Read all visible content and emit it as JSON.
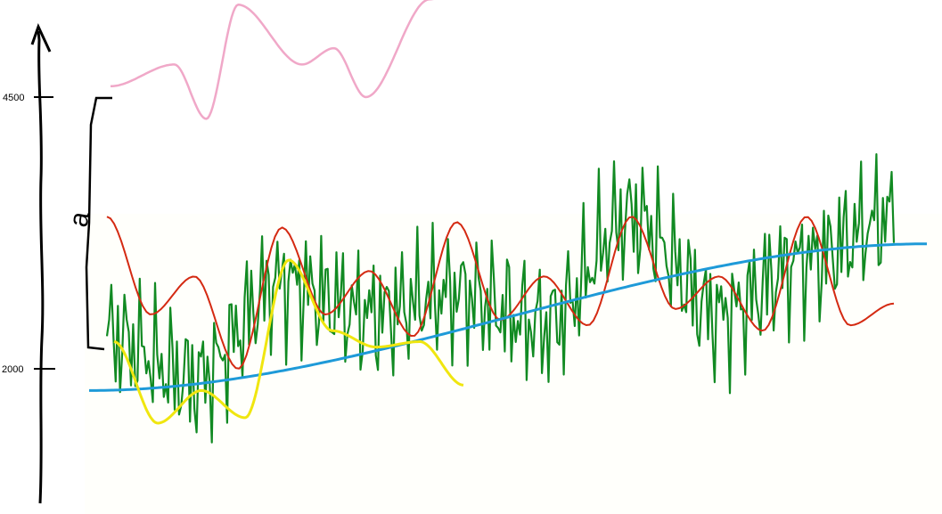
{
  "chart_data": {
    "type": "line",
    "title": "",
    "xlabel": "",
    "ylabel": "",
    "ylim": [
      800,
      5300
    ],
    "y_ticks": [
      {
        "value": 4500,
        "label": "4500"
      },
      {
        "value": 2000,
        "label": "2000"
      }
    ],
    "annotations": [
      {
        "text": "a",
        "from": 2000,
        "to": 4500
      }
    ],
    "grid": false,
    "legend": "none",
    "series": [
      {
        "key": "green",
        "color": "#118a22",
        "x": [
          0,
          1,
          2,
          3,
          4,
          5,
          6,
          7,
          8,
          9
        ],
        "values": [
          2300,
          1900,
          2800,
          2500,
          2700,
          2400,
          3400,
          2500,
          3000,
          3400
        ],
        "noise_amplitude": 900
      },
      {
        "key": "red",
        "color": "#d42a12",
        "x": [
          0,
          0.5,
          1,
          1.5,
          2,
          2.5,
          3,
          3.5,
          4,
          4.5,
          5,
          5.5,
          6,
          6.5,
          7,
          7.5,
          8,
          8.5,
          9
        ],
        "values": [
          3400,
          2500,
          2850,
          2000,
          3300,
          2500,
          2900,
          2300,
          3350,
          2450,
          2850,
          2400,
          3400,
          2550,
          2850,
          2350,
          3400,
          2400,
          2600
        ]
      },
      {
        "key": "blue",
        "color": "#1e9ad8",
        "x": [
          0,
          9.5
        ],
        "values": [
          1800,
          3150
        ]
      },
      {
        "key": "yellow",
        "color": "#f0e60f",
        "x": [
          0,
          0.5,
          1,
          1.5,
          2,
          2.5,
          3,
          3.5,
          4
        ],
        "values": [
          2250,
          1500,
          1800,
          1550,
          3000,
          2350,
          2200,
          2250,
          1850
        ]
      },
      {
        "key": "pink",
        "color": "#f0a8c8",
        "x": [
          0,
          1,
          1.5,
          2,
          3,
          3.5,
          4,
          5,
          5.5
        ],
        "values": [
          4600,
          4800,
          4300,
          5350,
          4800,
          4950,
          4500,
          5400,
          5500
        ]
      }
    ]
  }
}
